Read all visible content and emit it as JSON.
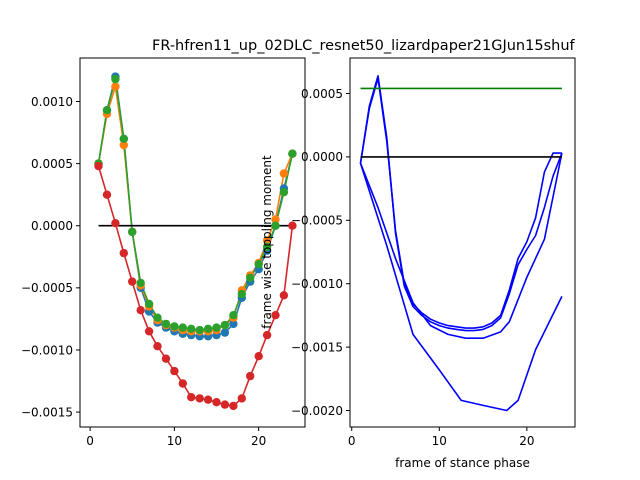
{
  "title": "FR-hfren11_up_02DLC_resnet50_lizardpaper21GJun15shuf",
  "chart_data": [
    {
      "type": "line",
      "panel": "left",
      "markers": true,
      "xlim": [
        -1.2,
        25.5
      ],
      "ylim": [
        -0.00162,
        0.00135
      ],
      "xticks": [
        0,
        10,
        20
      ],
      "yticks": [
        0.001,
        0.0005,
        0.0,
        -0.0005,
        -0.001,
        -0.0015
      ],
      "yticklabels": [
        "0.0010",
        "0.0005",
        "0.0000",
        "−0.0005",
        "−0.0010",
        "−0.0015"
      ],
      "xlabel": "",
      "ylabel": "",
      "grid": false,
      "series": [
        {
          "color": "#1f77b4",
          "x": [
            1,
            2,
            3,
            4,
            5,
            6,
            7,
            8,
            9,
            10,
            11,
            12,
            13,
            14,
            15,
            16,
            17,
            18,
            19,
            20,
            21,
            22,
            23,
            24
          ],
          "y": [
            0.0005,
            0.00093,
            0.0012,
            0.0007,
            -5e-05,
            -0.0005,
            -0.00069,
            -0.00078,
            -0.00082,
            -0.00085,
            -0.00087,
            -0.00088,
            -0.00089,
            -0.00089,
            -0.00088,
            -0.00086,
            -0.00079,
            -0.00058,
            -0.00045,
            -0.00035,
            -0.0002,
            0.0,
            0.0003,
            0.00058
          ]
        },
        {
          "color": "#ff7f0e",
          "x": [
            1,
            2,
            3,
            4,
            5,
            6,
            7,
            8,
            9,
            10,
            11,
            12,
            13,
            14,
            15,
            16,
            17,
            18,
            19,
            20,
            21,
            22,
            23,
            24
          ],
          "y": [
            0.0005,
            0.0009,
            0.00112,
            0.00065,
            -5e-05,
            -0.00048,
            -0.00065,
            -0.00076,
            -0.0008,
            -0.00082,
            -0.00084,
            -0.00085,
            -0.00085,
            -0.00085,
            -0.00084,
            -0.0008,
            -0.00074,
            -0.00052,
            -0.0004,
            -0.0003,
            -0.00012,
            5e-05,
            0.00042,
            0.00058
          ]
        },
        {
          "color": "#2ca02c",
          "x": [
            1,
            2,
            3,
            4,
            5,
            6,
            7,
            8,
            9,
            10,
            11,
            12,
            13,
            14,
            15,
            16,
            17,
            18,
            19,
            20,
            21,
            22,
            23,
            24
          ],
          "y": [
            0.0005,
            0.00093,
            0.00118,
            0.0007,
            -5e-05,
            -0.00046,
            -0.00063,
            -0.00074,
            -0.00079,
            -0.00081,
            -0.00082,
            -0.00083,
            -0.00084,
            -0.00083,
            -0.00082,
            -0.0008,
            -0.00072,
            -0.00055,
            -0.00042,
            -0.00031,
            -0.00017,
            0.0,
            0.00027,
            0.00058
          ]
        },
        {
          "color": "#d62728",
          "x": [
            1,
            2,
            3,
            4,
            5,
            6,
            7,
            8,
            9,
            10,
            11,
            12,
            13,
            14,
            15,
            16,
            17,
            18,
            19,
            20,
            21,
            22,
            23,
            24
          ],
          "y": [
            0.00048,
            0.00025,
            2e-05,
            -0.00022,
            -0.00045,
            -0.00068,
            -0.00085,
            -0.00097,
            -0.00107,
            -0.00117,
            -0.00127,
            -0.00138,
            -0.00139,
            -0.0014,
            -0.00142,
            -0.00144,
            -0.00145,
            -0.00139,
            -0.00121,
            -0.00105,
            -0.00088,
            -0.00072,
            -0.00056,
            0
          ]
        }
      ],
      "reference_line": {
        "color": "#000000",
        "x": [
          1,
          24
        ],
        "y": [
          0.0,
          0.0
        ]
      }
    },
    {
      "type": "line",
      "panel": "right",
      "markers": false,
      "xlim": [
        -0.2,
        25.5
      ],
      "ylim": [
        -0.00213,
        0.00078
      ],
      "xticks": [
        0,
        10,
        20
      ],
      "yticks": [
        0.0005,
        0.0,
        -0.0005,
        -0.001,
        -0.0015,
        -0.002
      ],
      "yticklabels": [
        "0.0005",
        "0.0000",
        "−0.0005",
        "−0.0010",
        "−0.0015",
        "−0.0020"
      ],
      "xlabel": "frame of stance phase",
      "ylabel": "frame wise toppling moment",
      "grid": false,
      "series": [
        {
          "color": "#0000ff",
          "x": [
            1,
            2,
            3,
            4,
            5,
            6,
            7,
            8,
            9,
            10,
            11,
            12,
            13,
            14,
            15,
            16,
            17,
            18,
            19,
            20,
            21,
            22,
            23,
            24
          ],
          "y": [
            -5e-05,
            0.0004,
            0.00064,
            0.00015,
            -0.0006,
            -0.00102,
            -0.00118,
            -0.00125,
            -0.0013,
            -0.00133,
            -0.00135,
            -0.00136,
            -0.00137,
            -0.00137,
            -0.00136,
            -0.00133,
            -0.00127,
            -0.00108,
            -0.00085,
            -0.00073,
            -0.00062,
            -0.0004,
            -0.00015,
            3e-05
          ]
        },
        {
          "color": "#0000ff",
          "x": [
            1,
            2,
            3,
            4,
            5,
            6,
            7,
            8,
            9,
            10,
            11,
            12,
            13,
            14,
            15,
            16,
            17,
            18,
            19,
            20,
            21,
            22,
            23,
            24
          ],
          "y": [
            -5e-05,
            0.00038,
            0.00062,
            0.00012,
            -0.00058,
            -0.001,
            -0.00116,
            -0.00123,
            -0.00128,
            -0.00131,
            -0.00133,
            -0.00134,
            -0.00135,
            -0.00135,
            -0.00134,
            -0.00131,
            -0.00125,
            -0.00105,
            -0.0008,
            -0.00067,
            -0.00048,
            -0.00012,
            3e-05,
            3e-05
          ]
        },
        {
          "color": "#0000ff",
          "x": [
            1,
            3,
            5,
            7,
            9,
            11,
            13,
            15,
            17,
            18,
            20,
            22,
            24
          ],
          "y": [
            -5e-05,
            -0.0004,
            -0.0008,
            -0.00115,
            -0.00133,
            -0.0014,
            -0.00143,
            -0.00143,
            -0.00138,
            -0.0013,
            -0.00095,
            -0.00065,
            3e-05
          ]
        },
        {
          "color": "#0000ff",
          "x": [
            1,
            4,
            7,
            10,
            12.5,
            15,
            17.7,
            19,
            21,
            24
          ],
          "y": [
            -5e-05,
            -0.0007,
            -0.0014,
            -0.00168,
            -0.00192,
            -0.00196,
            -0.002,
            -0.00192,
            -0.00152,
            -0.0011
          ]
        },
        {
          "color": "#008000",
          "x": [
            1,
            24
          ],
          "y": [
            0.00054,
            0.00054
          ]
        }
      ],
      "reference_line": {
        "color": "#000000",
        "x": [
          1,
          24
        ],
        "y": [
          0.0,
          0.0
        ]
      }
    }
  ]
}
